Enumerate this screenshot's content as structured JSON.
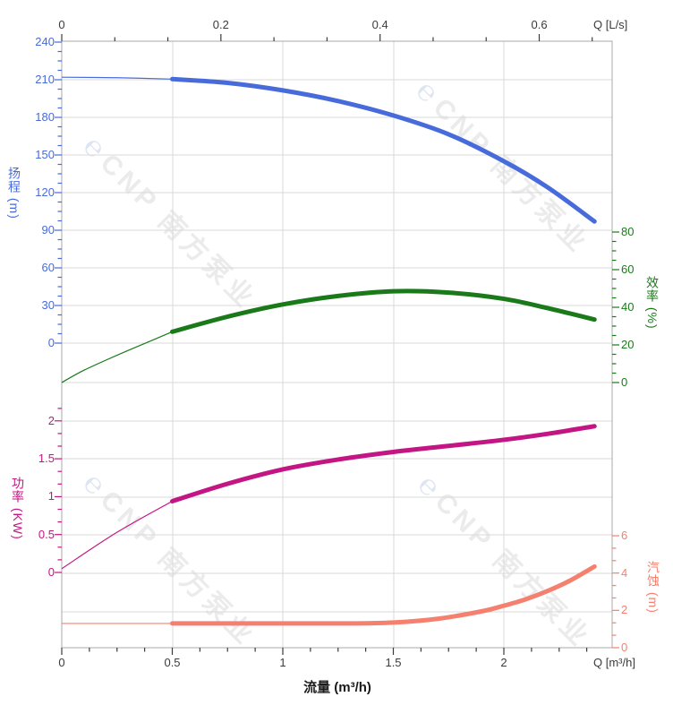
{
  "watermark": {
    "logo_glyph": "℮",
    "text": "CNP 南方泵业"
  },
  "axes": {
    "top": {
      "unit": "Q [L/s]",
      "ticks": [
        "0",
        "0.2",
        "0.4",
        "0.6"
      ],
      "color": "#3b3b3b"
    },
    "bottom": {
      "unit": "Q [m³/h]",
      "title": "流量 (m³/h)",
      "ticks": [
        "0",
        "0.5",
        "1",
        "1.5",
        "2"
      ],
      "color": "#3b3b3b"
    },
    "head": {
      "title": "扬程 (m)",
      "ticks": [
        "240",
        "210",
        "180",
        "150",
        "120",
        "90",
        "60",
        "30",
        "0"
      ],
      "color": "#476bdb"
    },
    "efficiency": {
      "title": "效率 (%)",
      "ticks": [
        "80",
        "60",
        "40",
        "20",
        "0"
      ],
      "color": "#1a7a1a"
    },
    "power": {
      "title": "功率 (KW)",
      "ticks": [
        "2",
        "1.5",
        "1",
        "0.5",
        "0"
      ],
      "color": "#c31583"
    },
    "npsh": {
      "title": "汽蚀 (m)",
      "ticks": [
        "6",
        "4",
        "2",
        "0"
      ],
      "color": "#f5806f"
    }
  },
  "chart_data": {
    "type": "line",
    "title": "",
    "xlabel": "流量 (m³/h)",
    "x_unit_bottom": "m³/h",
    "x_unit_top": "L/s",
    "x_range_m3h": [
      0,
      2.5
    ],
    "x_max_curve": 2.41,
    "rated_range_start": 0.5,
    "grid": true,
    "legend": "none",
    "axis_ranges": {
      "head": [
        0,
        240
      ],
      "efficiency": [
        0,
        80
      ],
      "power": [
        0,
        2
      ],
      "npsh": [
        0,
        6
      ]
    },
    "series": [
      {
        "name": "扬程",
        "unit": "m",
        "axis": "head",
        "color": "#476bdb",
        "x": [
          0,
          0.25,
          0.5,
          0.75,
          1.0,
          1.25,
          1.5,
          1.75,
          2.0,
          2.2,
          2.41
        ],
        "values": [
          212,
          211.6,
          210.5,
          207.5,
          201.5,
          193,
          181.5,
          166.5,
          145,
          124,
          97
        ]
      },
      {
        "name": "效率",
        "unit": "%",
        "axis": "efficiency",
        "color": "#1a7a1a",
        "x": [
          0,
          0.1,
          0.25,
          0.4,
          0.5,
          0.75,
          1.0,
          1.25,
          1.5,
          1.75,
          2.0,
          2.2,
          2.41
        ],
        "values": [
          0,
          6.5,
          14.5,
          22,
          27,
          35,
          41.5,
          46,
          48.5,
          47.8,
          44.5,
          39.5,
          33.5
        ]
      },
      {
        "name": "功率",
        "unit": "KW",
        "axis": "power",
        "color": "#c31583",
        "x": [
          0,
          0.25,
          0.5,
          0.75,
          1.0,
          1.25,
          1.5,
          1.75,
          2.0,
          2.2,
          2.41
        ],
        "values": [
          0.05,
          0.53,
          0.94,
          1.17,
          1.36,
          1.49,
          1.59,
          1.67,
          1.75,
          1.83,
          1.93
        ]
      },
      {
        "name": "汽蚀",
        "unit": "m",
        "axis": "npsh",
        "color": "#f5806f",
        "x": [
          0,
          0.5,
          1.0,
          1.3,
          1.5,
          1.7,
          1.9,
          2.0,
          2.1,
          2.2,
          2.3,
          2.41
        ],
        "values": [
          1.3,
          1.3,
          1.3,
          1.3,
          1.35,
          1.55,
          1.95,
          2.25,
          2.6,
          3.05,
          3.6,
          4.35
        ]
      }
    ]
  }
}
